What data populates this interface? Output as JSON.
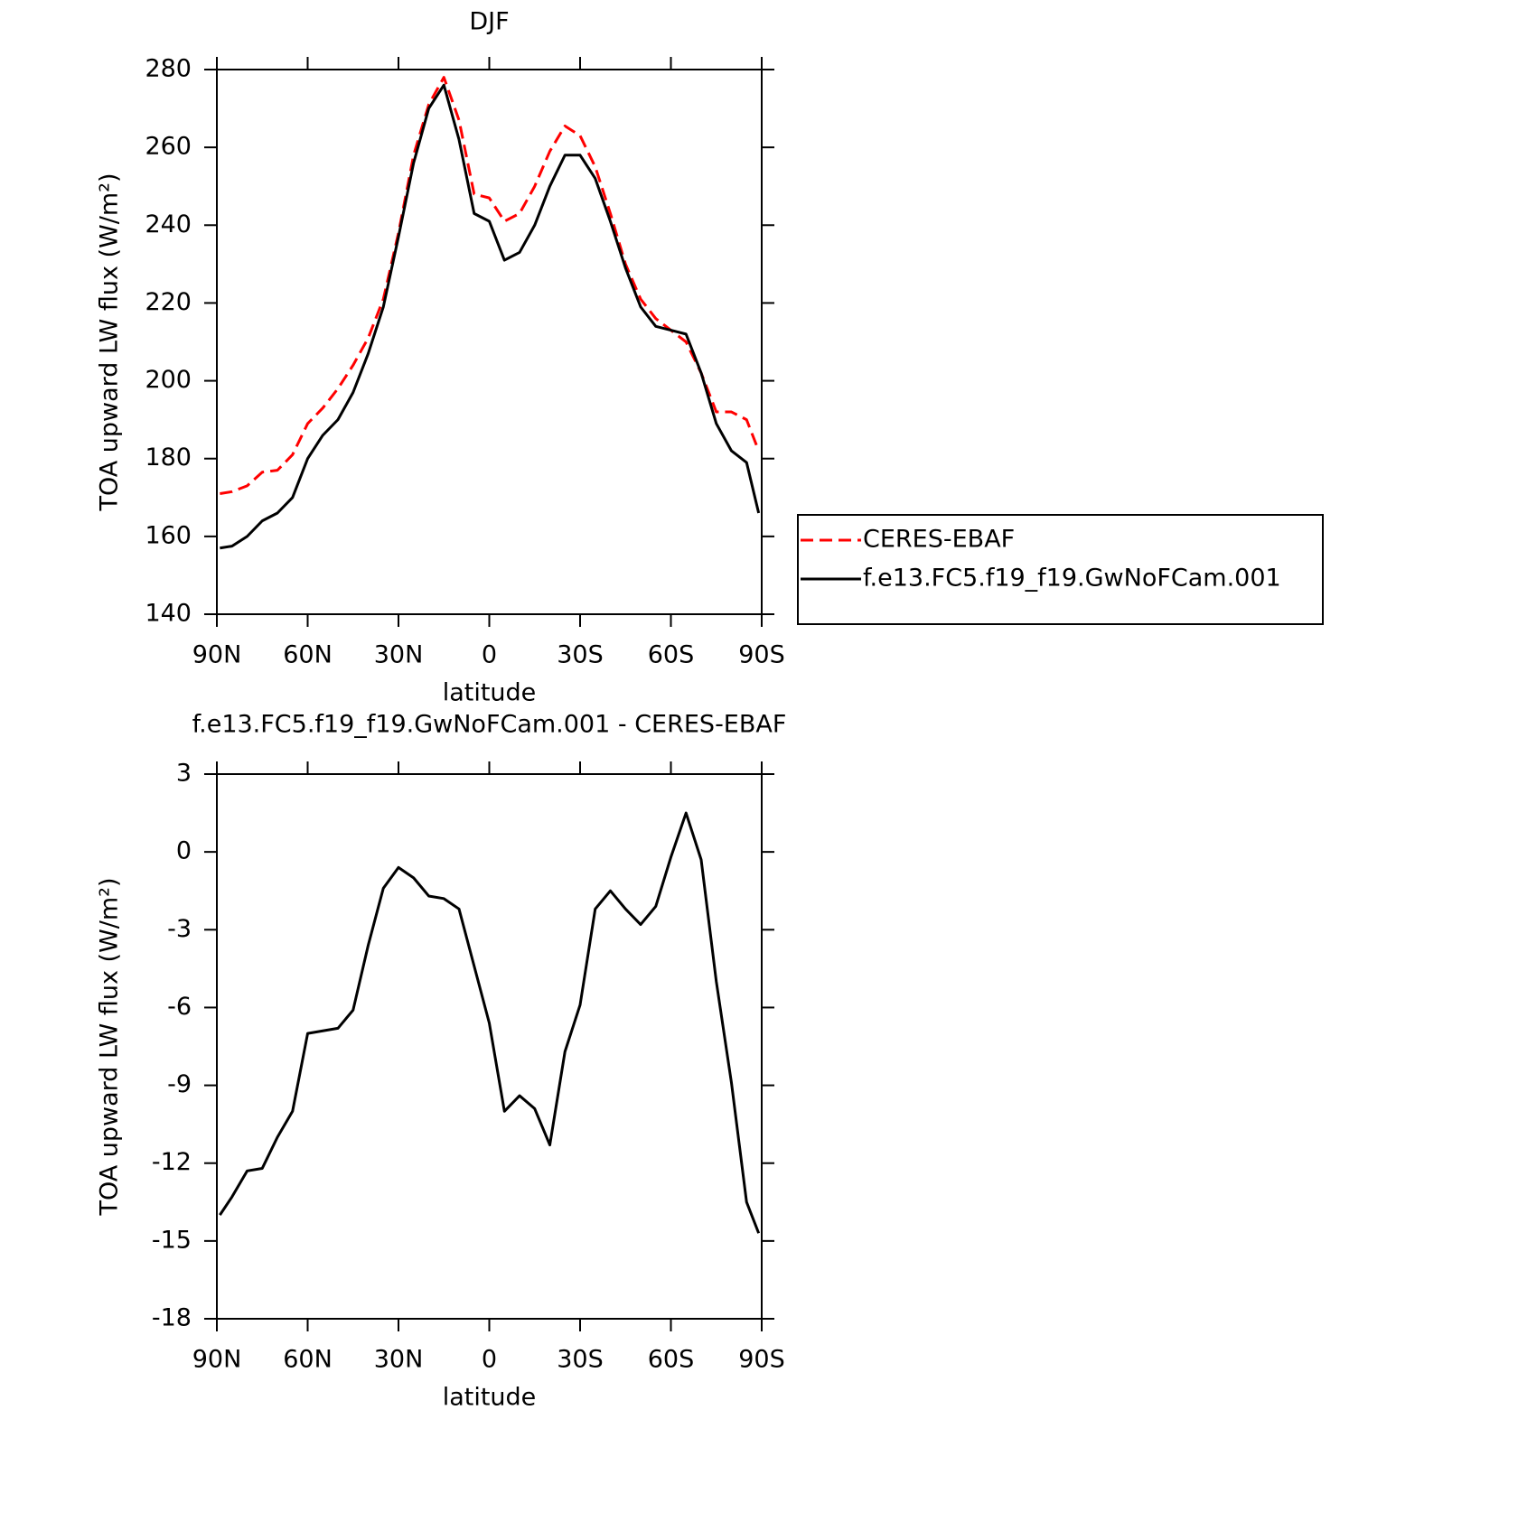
{
  "chart_data": [
    {
      "type": "line",
      "title": "DJF",
      "xlabel": "latitude",
      "ylabel": "TOA upward LW flux (W/m²)",
      "x": [
        89,
        85,
        80,
        75,
        70,
        65,
        60,
        55,
        50,
        45,
        40,
        35,
        30,
        25,
        20,
        15,
        10,
        5,
        0,
        -5,
        -10,
        -15,
        -20,
        -25,
        -30,
        -35,
        -40,
        -45,
        -50,
        -55,
        -60,
        -65,
        -70,
        -75,
        -80,
        -85,
        -89
      ],
      "xlim": [
        90,
        -90
      ],
      "xticks": [
        {
          "value": 90,
          "label": "90N"
        },
        {
          "value": 60,
          "label": "60N"
        },
        {
          "value": 30,
          "label": "30N"
        },
        0,
        {
          "value": -30,
          "label": "30S"
        },
        {
          "value": -60,
          "label": "60S"
        },
        {
          "value": -90,
          "label": "90S"
        }
      ],
      "ylim": [
        140,
        280
      ],
      "yticks": [
        140,
        160,
        180,
        200,
        220,
        240,
        260,
        280
      ],
      "legend": "right",
      "series": [
        {
          "name": "CERES-EBAF",
          "color": "#ff0000",
          "style": "dashed",
          "values": [
            171,
            171.5,
            173,
            176.5,
            177,
            181,
            189,
            193,
            198,
            204,
            211,
            221,
            238,
            258,
            271,
            278,
            267,
            248,
            247,
            241,
            243,
            250,
            259,
            265.5,
            263,
            255,
            243,
            230,
            221,
            216,
            213,
            210,
            202,
            192,
            192,
            190,
            182
          ]
        },
        {
          "name": "f.e13.FC5.f19_f19.GwNoFCam.001",
          "color": "#000000",
          "style": "solid",
          "values": [
            157,
            157.5,
            160,
            164,
            166,
            170,
            180,
            186,
            190,
            197,
            207,
            219,
            237,
            256,
            270,
            276,
            262,
            243,
            241,
            231,
            233,
            240,
            250,
            258,
            258,
            252,
            241,
            229,
            219,
            214,
            213,
            212,
            202,
            189,
            182,
            179,
            166
          ]
        }
      ]
    },
    {
      "type": "line",
      "title": "f.e13.FC5.f19_f19.GwNoFCam.001 - CERES-EBAF",
      "xlabel": "latitude",
      "ylabel": "TOA upward LW flux (W/m²)",
      "x": [
        89,
        85,
        80,
        75,
        70,
        65,
        60,
        55,
        50,
        45,
        40,
        35,
        30,
        25,
        20,
        15,
        10,
        5,
        0,
        -5,
        -10,
        -15,
        -20,
        -25,
        -30,
        -35,
        -40,
        -45,
        -50,
        -55,
        -60,
        -65,
        -70,
        -75,
        -80,
        -85,
        -89
      ],
      "xlim": [
        90,
        -90
      ],
      "xticks": [
        {
          "value": 90,
          "label": "90N"
        },
        {
          "value": 60,
          "label": "60N"
        },
        {
          "value": 30,
          "label": "30N"
        },
        0,
        {
          "value": -30,
          "label": "30S"
        },
        {
          "value": -60,
          "label": "60S"
        },
        {
          "value": -90,
          "label": "90S"
        }
      ],
      "ylim": [
        -18,
        3
      ],
      "yticks": [
        -18,
        -15,
        -12,
        -9,
        -6,
        -3,
        0,
        3
      ],
      "series": [
        {
          "color": "#000000",
          "style": "solid",
          "values": [
            -14,
            -13.3,
            -12.3,
            -12.2,
            -11,
            -10,
            -7,
            -6.9,
            -6.8,
            -6.1,
            -3.6,
            -1.4,
            -0.6,
            -1,
            -1.7,
            -1.8,
            -2.2,
            -4.4,
            -6.6,
            -10,
            -9.4,
            -9.9,
            -11.3,
            -7.7,
            -5.9,
            -2.2,
            -1.5,
            -2.2,
            -2.8,
            -2.1,
            -0.2,
            1.5,
            -0.3,
            -5,
            -8.9,
            -13.5,
            -14.7
          ]
        }
      ]
    }
  ]
}
